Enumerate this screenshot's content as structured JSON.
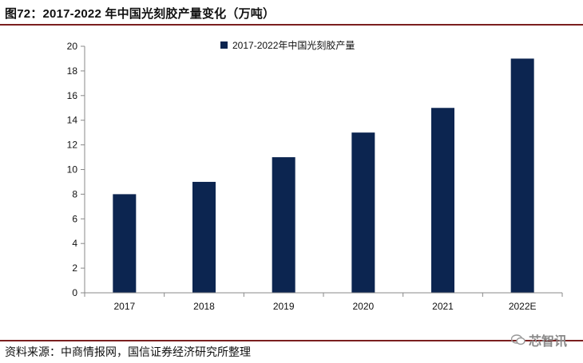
{
  "figure_title": "图72：2017-2022 年中国光刻胶产量变化（万吨）",
  "source": "资料来源：中商情报网，国信证券经济研究所整理",
  "watermark": "芯智讯",
  "colors": {
    "bar": "#0c2550",
    "rule": "#7b1f1f",
    "axis": "#888888"
  },
  "chart_data": {
    "type": "bar",
    "categories": [
      "2017",
      "2018",
      "2019",
      "2020",
      "2021",
      "2022E"
    ],
    "series": [
      {
        "name": "2017-2022年中国光刻胶产量",
        "values": [
          8,
          9,
          11,
          13,
          15,
          19
        ]
      }
    ],
    "ylim": [
      0,
      20
    ],
    "yticks": [
      "0",
      "2",
      "4",
      "6",
      "8",
      "10",
      "12",
      "14",
      "16",
      "18",
      "20"
    ],
    "legend_position": "top-center",
    "grid": false
  }
}
